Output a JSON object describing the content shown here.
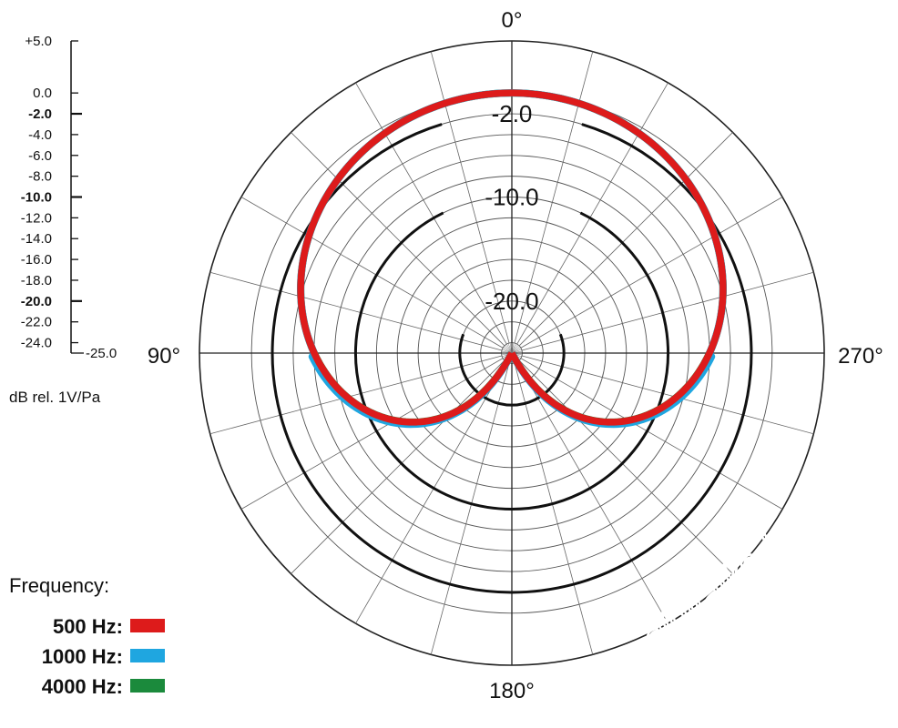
{
  "chart_data": {
    "type": "polar",
    "title": "",
    "unit_label": "dB rel. 1V/Pa",
    "r_range": [
      -25.0,
      5.0
    ],
    "scale_ticks": [
      "+5.0",
      "0.0",
      "-2.0",
      "-4.0",
      "-6.0",
      "-8.0",
      "-10.0",
      "-12.0",
      "-14.0",
      "-16.0",
      "-18.0",
      "-20.0",
      "-22.0",
      "-24.0",
      "-25.0"
    ],
    "scale_tick_values": [
      5,
      0,
      -2,
      -4,
      -6,
      -8,
      -10,
      -12,
      -14,
      -16,
      -18,
      -20,
      -22,
      -24,
      -25
    ],
    "bold_ticks": [
      "-2.0",
      "-10.0",
      "-20.0"
    ],
    "ring_labels": [
      "-2.0",
      "-10.0",
      "-20.0"
    ],
    "ring_label_values": [
      -2,
      -10,
      -20
    ],
    "grid_rings_db": [
      -24,
      -22,
      -20,
      -18,
      -16,
      -14,
      -12,
      -10,
      -8,
      -6,
      -4,
      -2,
      0,
      5
    ],
    "spoke_step_deg": 15,
    "angle_labels": {
      "top": "0°",
      "left": "90°",
      "right": "270°",
      "bottom": "180°"
    },
    "grid": true,
    "legend_placement": "bottom-left",
    "legend_title": "Frequency:",
    "series": [
      {
        "name": "500 Hz:",
        "color": "#dd1b1b",
        "pattern": "cardioid",
        "db_on_axis": 0
      },
      {
        "name": "1000 Hz:",
        "color": "#1fa6e0",
        "pattern": "cardioid",
        "db_on_axis": 0
      },
      {
        "name": "4000 Hz:",
        "color": "#1b8a3c",
        "pattern": "cardioid",
        "db_on_axis": 0
      }
    ]
  },
  "watermark": "www.digitalko.hu"
}
